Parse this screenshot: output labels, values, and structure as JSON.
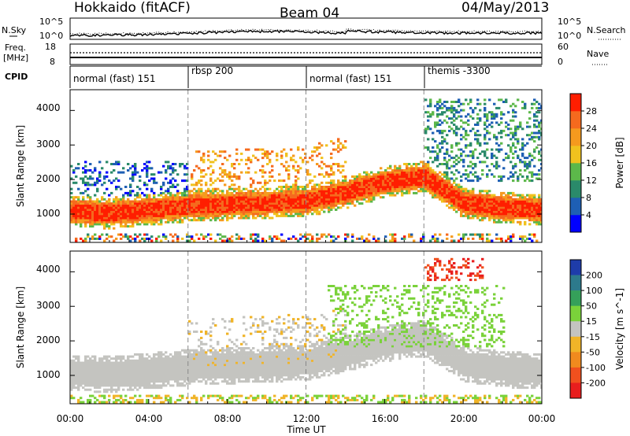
{
  "header": {
    "radar": "Hokkaido (fitACF)",
    "beam": "Beam 04",
    "date": "04/May/2013"
  },
  "noise_panel": {
    "left_label": "N.Sky",
    "right_label": "N.Search",
    "left_ticks": [
      "10^5",
      "10^0"
    ],
    "right_ticks": [
      "10^5",
      "10^0"
    ]
  },
  "freq_panel": {
    "left_label_1": "Freq.",
    "left_label_2": "[MHz]",
    "left_ticks": [
      "18",
      "8"
    ],
    "right_label": "Nave",
    "right_ticks": [
      "60",
      "0"
    ]
  },
  "cpid": {
    "label": "CPID",
    "segments": [
      {
        "label": "normal (fast) 151",
        "start_hour": 0
      },
      {
        "label": "rbsp 200",
        "start_hour": 6
      },
      {
        "label": "normal (fast) 151",
        "start_hour": 12
      },
      {
        "label": "themis -3300",
        "start_hour": 18
      }
    ]
  },
  "axes": {
    "x_ticks": [
      "00:00",
      "04:00",
      "08:00",
      "12:00",
      "16:00",
      "20:00",
      "00:00"
    ],
    "x_label": "Time UT",
    "y_label": "Slant Range [km]",
    "y_ticks": [
      "1000",
      "2000",
      "3000",
      "4000"
    ]
  },
  "power_scale": {
    "label": "Power [dB]",
    "ticks": [
      "4",
      "8",
      "12",
      "16",
      "20",
      "24",
      "28"
    ],
    "colors": [
      "#0000ff",
      "#1e5fb4",
      "#2a8a6a",
      "#5cb84a",
      "#f0c21e",
      "#f59a1e",
      "#f56a1e",
      "#ff1e00"
    ]
  },
  "velocity_scale": {
    "label": "Velocity [m s^-1]",
    "ticks": [
      "200",
      "100",
      "50",
      "15",
      "-15",
      "-50",
      "-100",
      "-200"
    ],
    "colors": [
      "#1e3caa",
      "#2d7a8c",
      "#35a05a",
      "#7ad23a",
      "#c4c4c0",
      "#f0b428",
      "#f08a1e",
      "#f0501e",
      "#e81e1e"
    ]
  },
  "chart_data": {
    "type": "heatmap",
    "title": "Hokkaido (fitACF) Beam 04 04/May/2013",
    "xlabel": "Time UT",
    "ylabel": "Slant Range [km]",
    "xlim_hours": [
      0,
      24
    ],
    "ylim_km": [
      180,
      4600
    ],
    "power_echo_band": {
      "description_hours": [
        0,
        2,
        4,
        6,
        8,
        10,
        12,
        14,
        16,
        18,
        20,
        22,
        24
      ],
      "center_km": [
        1050,
        1000,
        1100,
        1200,
        1250,
        1300,
        1350,
        1600,
        1900,
        2050,
        1300,
        1150,
        1100
      ],
      "typical_power_db": [
        28,
        28,
        28,
        24,
        28,
        28,
        26,
        24,
        24,
        24,
        22,
        28,
        28
      ]
    },
    "velocity_dominant": "-15 to 15 (ground scatter)"
  }
}
